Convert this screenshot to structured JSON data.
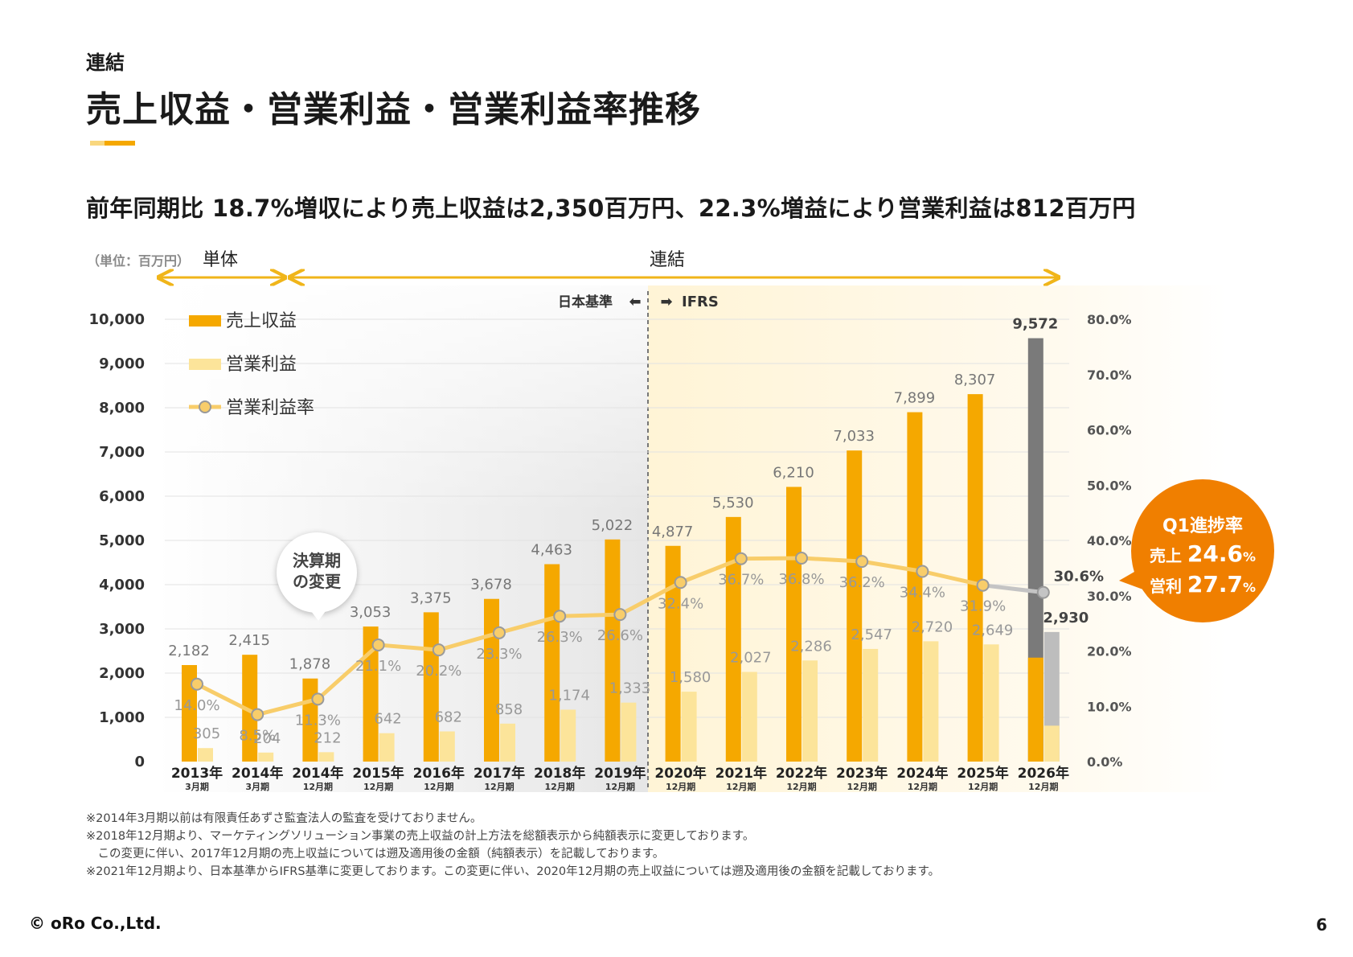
{
  "header": {
    "section": "連結",
    "title": "売上収益・営業利益・営業利益率推移",
    "subtitle": "前年同期比 18.7%増収により売上収益は2,350百万円、22.3%増益により営業利益は812百万円"
  },
  "chart_meta": {
    "unit_label": "（単位：百万円）",
    "segment_standalone": "単体",
    "segment_consolidated": "連結",
    "std_japan": "日本基準",
    "std_ifrs": "IFRS",
    "bubble_line1": "決算期",
    "bubble_line2": "の変更"
  },
  "legend": {
    "revenue": "売上収益",
    "operating_profit": "営業利益",
    "margin": "営業利益率"
  },
  "colors": {
    "revenue": "#f5a800",
    "operating_profit": "#fce49a",
    "margin_line": "#f8cd6a",
    "forecast_revenue": "#7a7a7a",
    "forecast_profit": "#bdbdbd",
    "badge": "#f07f00"
  },
  "badge": {
    "title": "Q1進捗率",
    "revenue_label": "売上",
    "revenue_value": "24.6",
    "profit_label": "営利",
    "profit_value": "27.7",
    "pct_sign": "%"
  },
  "chart_data": {
    "type": "bar",
    "categories": [
      "2013年",
      "2014年",
      "2014年",
      "2015年",
      "2016年",
      "2017年",
      "2018年",
      "2019年",
      "2020年",
      "2021年",
      "2022年",
      "2023年",
      "2024年",
      "2025年",
      "2026年"
    ],
    "category_sublabels": [
      "3月期",
      "3月期",
      "12月期",
      "12月期",
      "12月期",
      "12月期",
      "12月期",
      "12月期",
      "12月期",
      "12月期",
      "12月期",
      "12月期",
      "12月期",
      "12月期",
      "12月期"
    ],
    "series": [
      {
        "name": "売上収益",
        "values": [
          2182,
          2415,
          1878,
          3053,
          3375,
          3678,
          4463,
          5022,
          4877,
          5530,
          6210,
          7033,
          7899,
          8307,
          9572
        ],
        "labels": [
          "2,182",
          "2,415",
          "1,878",
          "3,053",
          "3,375",
          "3,678",
          "4,463",
          "5,022",
          "4,877",
          "5,530",
          "6,210",
          "7,033",
          "7,899",
          "8,307",
          "9,572"
        ]
      },
      {
        "name": "営業利益",
        "values": [
          305,
          204,
          212,
          642,
          682,
          858,
          1174,
          1333,
          1580,
          2027,
          2286,
          2547,
          2720,
          2649,
          2930
        ],
        "labels": [
          "305",
          "204",
          "212",
          "642",
          "682",
          "858",
          "1,174",
          "1,333",
          "1,580",
          "2,027",
          "2,286",
          "2,547",
          "2,720",
          "2,649",
          "2,930"
        ]
      },
      {
        "name": "営業利益率",
        "values": [
          14.0,
          8.5,
          11.3,
          21.1,
          20.2,
          23.3,
          26.3,
          26.6,
          32.4,
          36.7,
          36.8,
          36.2,
          34.4,
          31.9,
          30.6
        ],
        "labels": [
          "14.0%",
          "8.5%",
          "11.3%",
          "21.1%",
          "20.2%",
          "23.3%",
          "26.3%",
          "26.6%",
          "32.4%",
          "36.7%",
          "36.8%",
          "36.2%",
          "34.4%",
          "31.9%",
          "30.6%"
        ]
      }
    ],
    "forecast_2026_actual_q1": {
      "revenue": 2350,
      "operating_profit": 812
    },
    "y_left": {
      "min": 0,
      "max": 10000,
      "ticks": [
        "0",
        "1,000",
        "2,000",
        "3,000",
        "4,000",
        "5,000",
        "6,000",
        "7,000",
        "8,000",
        "9,000",
        "10,000"
      ]
    },
    "y_right": {
      "min": 0,
      "max": 80,
      "ticks": [
        "0.0%",
        "10.0%",
        "20.0%",
        "30.0%",
        "40.0%",
        "50.0%",
        "60.0%",
        "70.0%",
        "80.0%"
      ]
    },
    "grid": true,
    "legend_position": "top-left"
  },
  "notes": [
    "※2014年3月期以前は有限責任あずさ監査法人の監査を受けておりません。",
    "※2018年12月期より、マーケティングソリューション事業の売上収益の計上方法を総額表示から純額表示に変更しております。",
    "　この変更に伴い、2017年12月期の売上収益については遡及適用後の金額（純額表示）を記載しております。",
    "※2021年12月期より、日本基準からIFRS基準に変更しております。この変更に伴い、2020年12月期の売上収益については遡及適用後の金額を記載しております。"
  ],
  "footer": {
    "copyright": "© oRo Co.,Ltd.",
    "page": "6"
  }
}
